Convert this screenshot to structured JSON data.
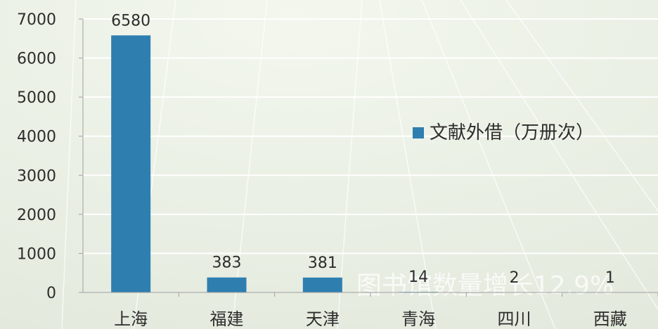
{
  "chart_data": {
    "type": "bar",
    "categories": [
      "上海",
      "福建",
      "天津",
      "青海",
      "四川",
      "西藏"
    ],
    "series": [
      {
        "name": "文献外借（万册次）",
        "values": [
          6580,
          383,
          381,
          14,
          2,
          1
        ],
        "color": "#2e7fb0"
      }
    ],
    "ylim": [
      0,
      7000
    ],
    "yticks": [
      0,
      1000,
      2000,
      3000,
      4000,
      5000,
      6000,
      7000
    ],
    "grid": true,
    "legend": "right",
    "title": "",
    "xlabel": "",
    "ylabel": ""
  },
  "watermark": "图书馆数量增长12.9%",
  "colors": {
    "background": "#e9efe3",
    "bar": "#2e7fb0",
    "text": "#2d2d2d",
    "axis": "#a0a0a0"
  }
}
